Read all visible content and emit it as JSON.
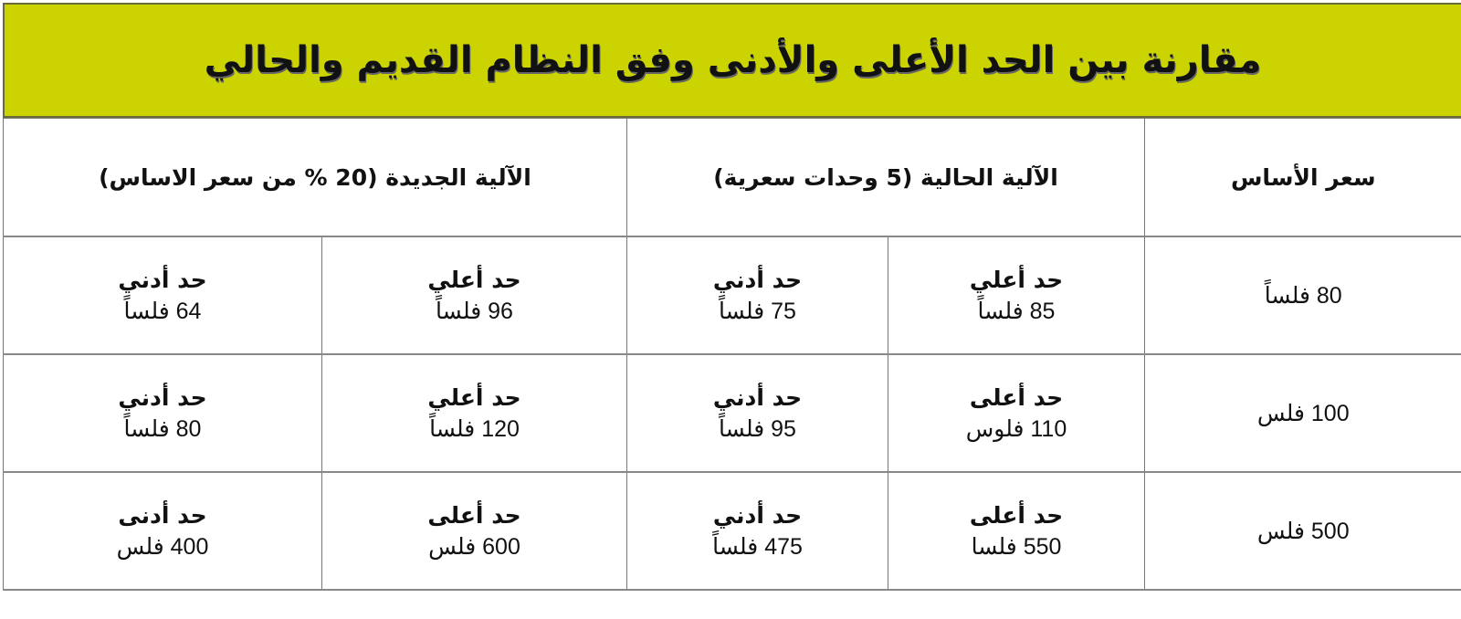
{
  "title": "مقارنة بين الحد الأعلى والأدنى وفق النظام القديم والحالي",
  "colors": {
    "title_bar": "#cbd300"
  },
  "headers": {
    "base_price": "سعر الأساس",
    "current": "الآلية الحالية (5 وحدات سعرية)",
    "new": "الآلية الجديدة (20 % من سعر الاساس)"
  },
  "rows": [
    {
      "base": "80 فلساً",
      "current_max": {
        "label": "حد أعلي",
        "value": "85 فلساً"
      },
      "current_min": {
        "label": "حد أدني",
        "value": "75 فلساً"
      },
      "new_max": {
        "label": "حد أعلي",
        "value": "96 فلساً"
      },
      "new_min": {
        "label": "حد أدني",
        "value": "64 فلساً"
      }
    },
    {
      "base": "100 فلس",
      "current_max": {
        "label": "حد أعلى",
        "value": "110 فلوس"
      },
      "current_min": {
        "label": "حد أدني",
        "value": "95 فلساً"
      },
      "new_max": {
        "label": "حد أعلي",
        "value": "120 فلساً"
      },
      "new_min": {
        "label": "حد أدني",
        "value": "80 فلساً"
      }
    },
    {
      "base": "500 فلس",
      "current_max": {
        "label": "حد أعلى",
        "value": "550 فلسا"
      },
      "current_min": {
        "label": "حد أدني",
        "value": "475 فلساً"
      },
      "new_max": {
        "label": "حد أعلى",
        "value": "600 فلس"
      },
      "new_min": {
        "label": "حد أدنى",
        "value": "400 فلس"
      }
    }
  ]
}
